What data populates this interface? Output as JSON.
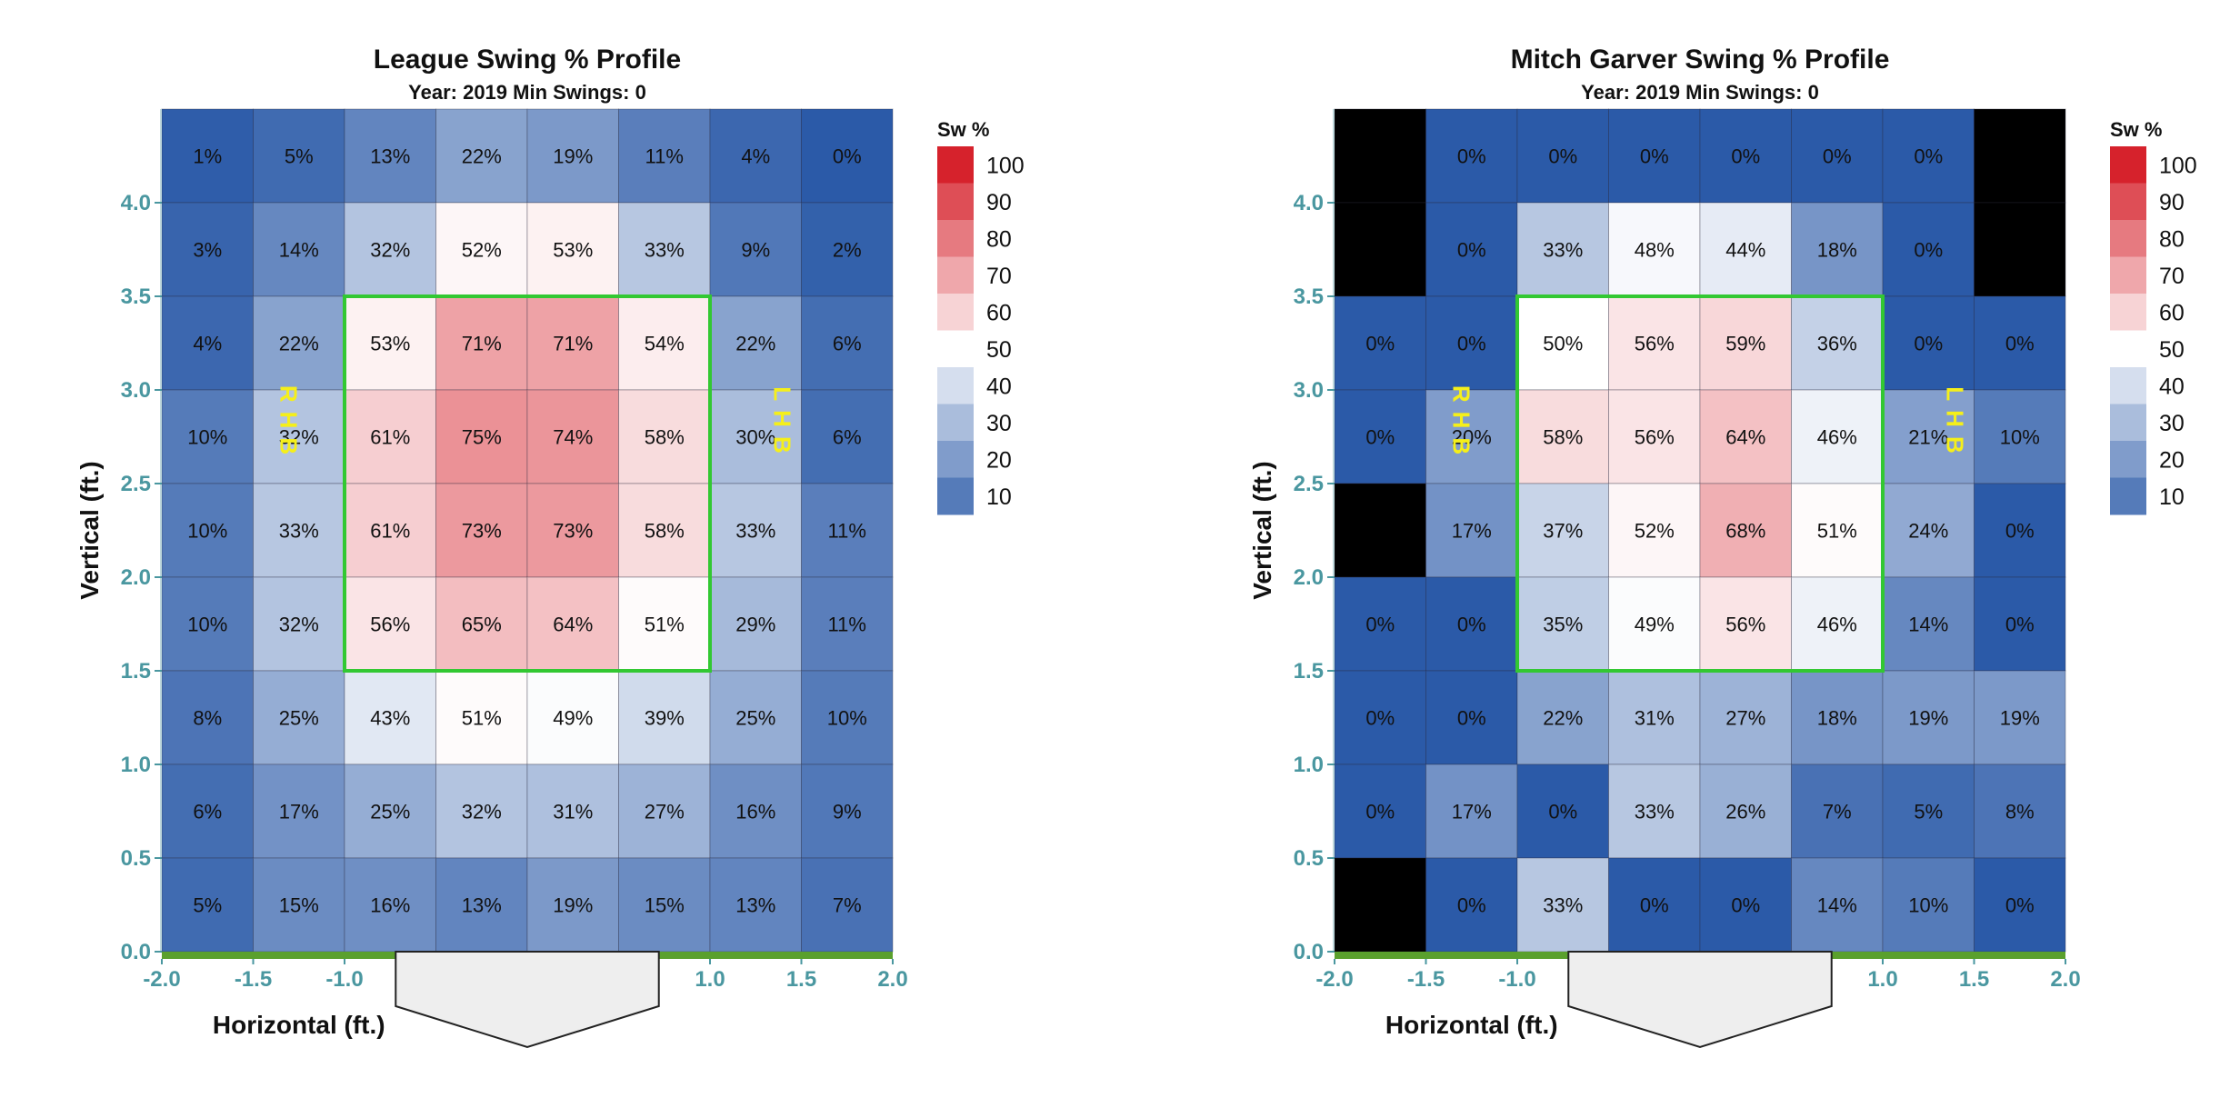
{
  "chart_data": [
    {
      "type": "heatmap",
      "title": "League Swing % Profile",
      "subtitle": "Year: 2019 Min Swings: 0",
      "xlabel": "Horizontal (ft.)",
      "ylabel": "Vertical (ft.)",
      "xlim": [
        -2.0,
        2.0
      ],
      "ylim": [
        0.0,
        4.5
      ],
      "x_ticks": [
        "-2.0",
        "-1.5",
        "-1.0",
        "1.0",
        "1.5",
        "2.0"
      ],
      "y_ticks": [
        "0.0",
        "0.5",
        "1.0",
        "1.5",
        "2.0",
        "2.5",
        "3.0",
        "3.5",
        "4.0"
      ],
      "strike_zone": {
        "x": [
          -1.0,
          1.0
        ],
        "y": [
          1.5,
          3.5
        ]
      },
      "hand_labels": {
        "left": "RHB",
        "right": "LHB"
      },
      "rows": [
        [
          "1%",
          "5%",
          "13%",
          "22%",
          "19%",
          "11%",
          "4%",
          "0%"
        ],
        [
          "3%",
          "14%",
          "32%",
          "52%",
          "53%",
          "33%",
          "9%",
          "2%"
        ],
        [
          "4%",
          "22%",
          "53%",
          "71%",
          "71%",
          "54%",
          "22%",
          "6%"
        ],
        [
          "10%",
          "32%",
          "61%",
          "75%",
          "74%",
          "58%",
          "30%",
          "6%"
        ],
        [
          "10%",
          "33%",
          "61%",
          "73%",
          "73%",
          "58%",
          "33%",
          "11%"
        ],
        [
          "10%",
          "32%",
          "56%",
          "65%",
          "64%",
          "51%",
          "29%",
          "11%"
        ],
        [
          "8%",
          "25%",
          "43%",
          "51%",
          "49%",
          "39%",
          "25%",
          "10%"
        ],
        [
          "6%",
          "17%",
          "25%",
          "32%",
          "31%",
          "27%",
          "16%",
          "9%"
        ],
        [
          "5%",
          "15%",
          "16%",
          "13%",
          "19%",
          "15%",
          "13%",
          "7%"
        ]
      ],
      "legend": {
        "title": "Sw %",
        "labels": [
          "100",
          "90",
          "80",
          "70",
          "60",
          "50",
          "40",
          "30",
          "20",
          "10"
        ]
      }
    },
    {
      "type": "heatmap",
      "title": "Mitch Garver Swing % Profile",
      "subtitle": "Year: 2019 Min Swings: 0",
      "xlabel": "Horizontal (ft.)",
      "ylabel": "Vertical (ft.)",
      "xlim": [
        -2.0,
        2.0
      ],
      "ylim": [
        0.0,
        4.5
      ],
      "x_ticks": [
        "-2.0",
        "-1.5",
        "-1.0",
        "1.0",
        "1.5",
        "2.0"
      ],
      "y_ticks": [
        "0.0",
        "0.5",
        "1.0",
        "1.5",
        "2.0",
        "2.5",
        "3.0",
        "3.5",
        "4.0"
      ],
      "strike_zone": {
        "x": [
          -1.0,
          1.0
        ],
        "y": [
          1.5,
          3.5
        ]
      },
      "hand_labels": {
        "left": "RHB",
        "right": "LHB"
      },
      "rows": [
        [
          null,
          "0%",
          "0%",
          "0%",
          "0%",
          "0%",
          "0%",
          null
        ],
        [
          null,
          "0%",
          "33%",
          "48%",
          "44%",
          "18%",
          "0%",
          null
        ],
        [
          "0%",
          "0%",
          "50%",
          "56%",
          "59%",
          "36%",
          "0%",
          "0%"
        ],
        [
          "0%",
          "20%",
          "58%",
          "56%",
          "64%",
          "46%",
          "21%",
          "10%"
        ],
        [
          null,
          "17%",
          "37%",
          "52%",
          "68%",
          "51%",
          "24%",
          "0%"
        ],
        [
          "0%",
          "0%",
          "35%",
          "49%",
          "56%",
          "46%",
          "14%",
          "0%"
        ],
        [
          "0%",
          "0%",
          "22%",
          "31%",
          "27%",
          "18%",
          "19%",
          "19%"
        ],
        [
          "0%",
          "17%",
          "0%",
          "33%",
          "26%",
          "7%",
          "5%",
          "8%"
        ],
        [
          null,
          "0%",
          "33%",
          "0%",
          "0%",
          "14%",
          "10%",
          "0%"
        ]
      ],
      "legend": {
        "title": "Sw %",
        "labels": [
          "100",
          "90",
          "80",
          "70",
          "60",
          "50",
          "40",
          "30",
          "20",
          "10"
        ]
      }
    }
  ],
  "colors": {
    "blue": "#2b5aa8",
    "white": "#ffffff",
    "red": "#d6222c",
    "empty": "#000000",
    "strike_zone": "#32c832",
    "ground": "#5aa02d",
    "tick": "#4a97a0",
    "hand_label": "#f5ef1a",
    "plate_fill": "#eeeeee"
  }
}
